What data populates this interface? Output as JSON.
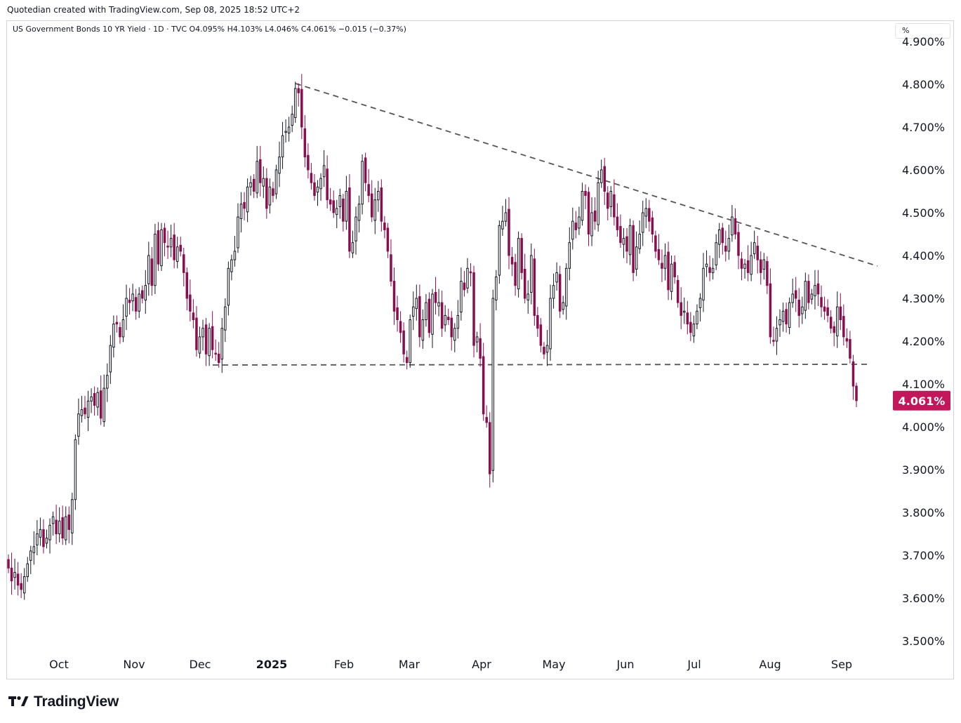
{
  "header": {
    "credit": "Quotedian created with TradingView.com, Sep 08, 2025 18:52 UTC+2"
  },
  "legend": {
    "text": "US Government Bonds 10 YR Yield · 1D · TVC  O4.095%  H4.103%  L4.046%  C4.061%  −0.015 (−0.37%)"
  },
  "axis": {
    "unit_label": "%"
  },
  "brand": {
    "name": "TradingView",
    "icon": "tradingview-logo-icon"
  },
  "colors": {
    "up": "#131722",
    "down": "#880e4f",
    "price_badge": "#c2185b",
    "trendline": "#555555"
  },
  "chart_data": {
    "type": "candlestick",
    "title": "US Government Bonds 10 YR Yield",
    "interval": "1D",
    "source": "TVC",
    "ylabel": "%",
    "ylim": [
      3.45,
      4.92
    ],
    "y_ticks": [
      "4.900%",
      "4.800%",
      "4.700%",
      "4.600%",
      "4.500%",
      "4.400%",
      "4.300%",
      "4.200%",
      "4.100%",
      "4.000%",
      "3.900%",
      "3.800%",
      "3.700%",
      "3.600%",
      "3.500%"
    ],
    "x_labels": [
      "Oct",
      "Nov",
      "Dec",
      "2025",
      "Feb",
      "Mar",
      "Apr",
      "May",
      "Jun",
      "Jul",
      "Aug",
      "Sep"
    ],
    "last_price": "4.061%",
    "last_ohlc": {
      "open": 4.095,
      "high": 4.103,
      "low": 4.046,
      "close": 4.061
    },
    "closes": [
      3.67,
      3.64,
      3.66,
      3.63,
      3.62,
      3.65,
      3.68,
      3.71,
      3.72,
      3.75,
      3.76,
      3.72,
      3.74,
      3.77,
      3.79,
      3.75,
      3.78,
      3.74,
      3.79,
      3.76,
      3.83,
      3.97,
      4.03,
      4.04,
      4.03,
      4.06,
      4.07,
      4.05,
      4.08,
      4.02,
      4.09,
      4.12,
      4.19,
      4.24,
      4.24,
      4.21,
      4.25,
      4.3,
      4.29,
      4.31,
      4.27,
      4.31,
      4.3,
      4.33,
      4.4,
      4.33,
      4.45,
      4.38,
      4.46,
      4.43,
      4.42,
      4.44,
      4.39,
      4.42,
      4.41,
      4.36,
      4.3,
      4.27,
      4.25,
      4.18,
      4.21,
      4.23,
      4.17,
      4.23,
      4.18,
      4.17,
      4.15,
      4.23,
      4.28,
      4.37,
      4.39,
      4.41,
      4.49,
      4.52,
      4.51,
      4.56,
      4.57,
      4.55,
      4.62,
      4.57,
      4.58,
      4.51,
      4.56,
      4.54,
      4.6,
      4.63,
      4.68,
      4.69,
      4.7,
      4.73,
      4.79,
      4.78,
      4.7,
      4.63,
      4.6,
      4.57,
      4.54,
      4.56,
      4.58,
      4.61,
      4.53,
      4.52,
      4.5,
      4.51,
      4.54,
      4.48,
      4.55,
      4.41,
      4.43,
      4.49,
      4.52,
      4.62,
      4.57,
      4.54,
      4.49,
      4.53,
      4.55,
      4.48,
      4.46,
      4.41,
      4.34,
      4.27,
      4.25,
      4.22,
      4.17,
      4.15,
      4.25,
      4.28,
      4.3,
      4.21,
      4.25,
      4.29,
      4.22,
      4.31,
      4.29,
      4.29,
      4.23,
      4.26,
      4.25,
      4.21,
      4.23,
      4.26,
      4.34,
      4.32,
      4.37,
      4.36,
      4.19,
      4.21,
      4.16,
      4.03,
      4.01,
      3.89,
      4.3,
      4.35,
      4.47,
      4.48,
      4.5,
      4.4,
      4.38,
      4.33,
      4.44,
      4.36,
      4.3,
      4.31,
      4.4,
      4.26,
      4.23,
      4.19,
      4.17,
      4.19,
      4.3,
      4.33,
      4.36,
      4.27,
      4.29,
      4.37,
      4.43,
      4.48,
      4.46,
      4.49,
      4.55,
      4.54,
      4.45,
      4.5,
      4.48,
      4.57,
      4.6,
      4.55,
      4.51,
      4.55,
      4.49,
      4.46,
      4.43,
      4.44,
      4.41,
      4.47,
      4.36,
      4.42,
      4.45,
      4.5,
      4.51,
      4.48,
      4.45,
      4.41,
      4.39,
      4.37,
      4.4,
      4.32,
      4.38,
      4.35,
      4.29,
      4.26,
      4.27,
      4.24,
      4.22,
      4.24,
      4.27,
      4.3,
      4.37,
      4.38,
      4.36,
      4.37,
      4.43,
      4.46,
      4.43,
      4.41,
      4.44,
      4.49,
      4.45,
      4.4,
      4.37,
      4.38,
      4.36,
      4.4,
      4.43,
      4.39,
      4.36,
      4.39,
      4.33,
      4.21,
      4.2,
      4.23,
      4.25,
      4.27,
      4.24,
      4.29,
      4.31,
      4.3,
      4.26,
      4.28,
      4.34,
      4.29,
      4.31,
      4.33,
      4.31,
      4.28,
      4.27,
      4.26,
      4.23,
      4.22,
      4.28,
      4.25,
      4.21,
      4.2,
      4.16,
      4.095,
      4.061
    ]
  }
}
